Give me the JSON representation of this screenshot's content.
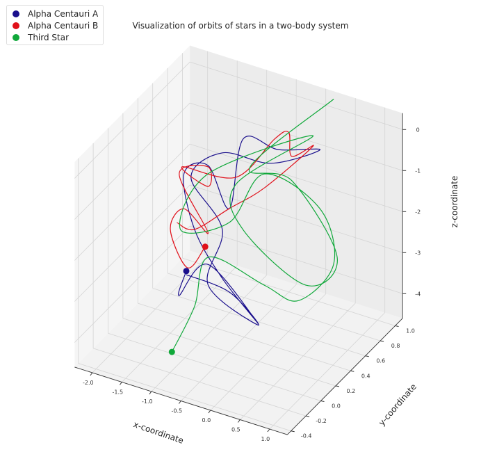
{
  "chart_data": {
    "type": "line3d",
    "title": "Visualization of orbits of stars in a two-body system",
    "xlabel": "x-coordinate",
    "ylabel": "y-coordinate",
    "zlabel": "z-coordinate",
    "xlim": [
      -2.3,
      1.3
    ],
    "ylim": [
      -0.45,
      1.1
    ],
    "zlim": [
      -4.6,
      0.4
    ],
    "xticks": [
      "-2.0",
      "-1.5",
      "-1.0",
      "-0.5",
      "0.0",
      "0.5",
      "1.0"
    ],
    "yticks": [
      "-0.4",
      "-0.2",
      "0.0",
      "0.2",
      "0.4",
      "0.6",
      "0.8",
      "1.0"
    ],
    "zticks": [
      "-4",
      "-3",
      "-2",
      "-1",
      "0"
    ],
    "grid": true,
    "legend_position": "top-left",
    "series": [
      {
        "name": "Alpha Centauri A",
        "color": "#1a0f8c",
        "points": [
          [
            -1.48,
            0.4,
            -3.44
          ],
          [
            -1.6,
            0.4,
            -4.09
          ],
          [
            -1.11,
            0.4,
            -3.11
          ],
          [
            -0.26,
            0.4,
            -4.17
          ],
          [
            -0.87,
            0.4,
            -3.34
          ],
          [
            -1.34,
            0.4,
            -2.36
          ],
          [
            -1.52,
            0.4,
            -1.09
          ],
          [
            -1.11,
            0.4,
            -0.7
          ],
          [
            -0.75,
            0.4,
            -1.58
          ],
          [
            -1.02,
            0.8,
            -0.74
          ],
          [
            -0.43,
            0.8,
            -0.73
          ],
          [
            0.28,
            0.8,
            -0.41
          ],
          [
            -0.55,
            0.8,
            -1.12
          ],
          [
            -0.87,
            0.4,
            -0.28
          ],
          [
            -1.4,
            0.4,
            -1.12
          ],
          [
            -0.87,
            0.4,
            -2.15
          ],
          [
            -1.11,
            0.4,
            -3.61
          ],
          [
            -0.26,
            0.4,
            -4.2
          ],
          [
            -0.75,
            0.4,
            -3.62
          ],
          [
            -1.48,
            0.4,
            -3.53
          ]
        ]
      },
      {
        "name": "Alpha Centauri B",
        "color": "#e0101a",
        "points": [
          [
            -1.16,
            0.4,
            -2.7
          ],
          [
            -1.46,
            0.4,
            -3.35
          ],
          [
            -1.75,
            0.4,
            -2.55
          ],
          [
            -1.52,
            0.4,
            -1.94
          ],
          [
            -1.11,
            0.4,
            -2.34
          ],
          [
            -1.6,
            0.4,
            -1.13
          ],
          [
            -1.11,
            0.4,
            -0.73
          ],
          [
            -1.11,
            0.4,
            -1.21
          ],
          [
            -1.55,
            0.4,
            -0.93
          ],
          [
            -0.64,
            0.4,
            -0.77
          ],
          [
            -0.49,
            0.8,
            -0.5
          ],
          [
            -0.25,
            0.8,
            -0.23
          ],
          [
            -0.2,
            0.8,
            -0.79
          ],
          [
            0.16,
            0.8,
            -0.38
          ],
          [
            -0.16,
            0.4,
            -0.81
          ],
          [
            -0.75,
            0.4,
            -1.58
          ],
          [
            -1.34,
            0.4,
            -2.36
          ],
          [
            -1.64,
            0.4,
            -2.33
          ]
        ]
      },
      {
        "name": "Third Star",
        "color": "#10a83a",
        "points": [
          [
            -1.22,
            0.0,
            -4.56
          ],
          [
            -1.09,
            0.2,
            -3.76
          ],
          [
            -0.98,
            0.3,
            -2.69
          ],
          [
            -0.16,
            0.4,
            -3.18
          ],
          [
            -0.08,
            0.8,
            -4.25
          ],
          [
            0.51,
            0.8,
            -3.09
          ],
          [
            0.28,
            0.8,
            -1.85
          ],
          [
            -0.16,
            0.4,
            -0.47
          ],
          [
            -0.75,
            0.4,
            -1.92
          ],
          [
            -1.58,
            0.4,
            -2.47
          ],
          [
            -1.11,
            0.4,
            -0.9
          ],
          [
            0.16,
            0.8,
            -0.12
          ],
          [
            -0.64,
            0.4,
            -0.94
          ],
          [
            -0.52,
            0.4,
            -1.99
          ],
          [
            0.04,
            0.8,
            -3.82
          ],
          [
            0.57,
            0.8,
            -2.9
          ],
          [
            -0.2,
            0.8,
            -1.38
          ],
          [
            -0.4,
            0.4,
            -0.41
          ],
          [
            0.26,
            1.0,
            0.45
          ]
        ]
      }
    ]
  }
}
